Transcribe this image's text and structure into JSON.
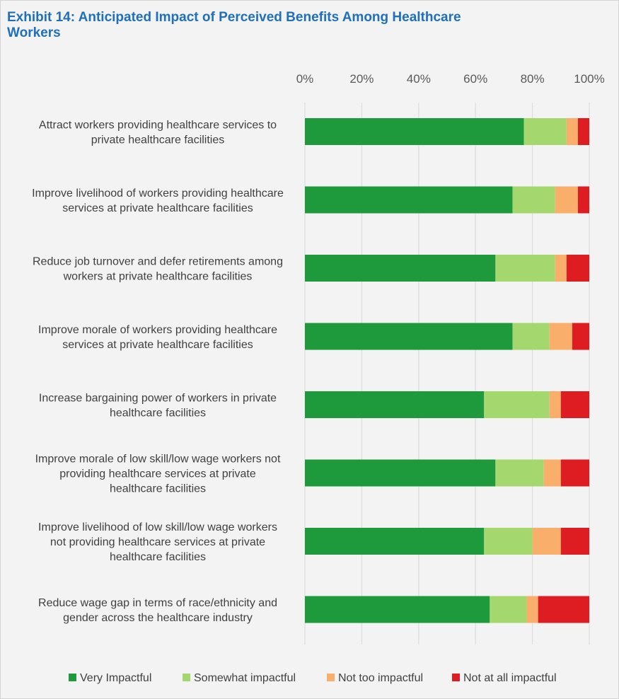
{
  "chart_data": {
    "type": "bar",
    "orientation": "horizontal",
    "stacked": true,
    "title": "Exhibit 14: Anticipated Impact of Perceived Benefits Among Healthcare Workers",
    "xlim": [
      0,
      100
    ],
    "ticks": [
      "0%",
      "20%",
      "40%",
      "60%",
      "80%",
      "100%"
    ],
    "grid": true,
    "legend_position": "bottom",
    "categories": [
      [
        "Attract workers providing healthcare services to",
        "private healthcare facilities"
      ],
      [
        "Improve livelihood of workers providing healthcare",
        "services at private healthcare facilities"
      ],
      [
        "Reduce job turnover and defer retirements among",
        "workers at private healthcare facilities"
      ],
      [
        "Improve morale of workers providing healthcare",
        "services at private healthcare facilities"
      ],
      [
        "Increase bargaining power of workers in private",
        "healthcare facilities"
      ],
      [
        "Improve morale of low skill/low wage workers not",
        "providing healthcare services  at private",
        "healthcare facilities"
      ],
      [
        "Improve livelihood of low skill/low wage workers",
        "not providing healthcare services at private",
        "healthcare facilities"
      ],
      [
        "Reduce wage gap in terms of race/ethnicity and",
        "gender across the healthcare industry"
      ]
    ],
    "series": [
      {
        "name": "Very Impactful",
        "color": "#1e9a3d",
        "values": [
          77,
          73,
          67,
          73,
          63,
          67,
          63,
          65
        ]
      },
      {
        "name": "Somewhat impactful",
        "color": "#a4d86e",
        "values": [
          15,
          15,
          21,
          13,
          23,
          17,
          17,
          13
        ]
      },
      {
        "name": "Not too impactful",
        "color": "#f9ae6b",
        "values": [
          4,
          8,
          4,
          8,
          4,
          6,
          10,
          4
        ]
      },
      {
        "name": "Not at all impactful",
        "color": "#dd1d21",
        "values": [
          4,
          4,
          8,
          6,
          10,
          10,
          10,
          18
        ]
      }
    ]
  }
}
